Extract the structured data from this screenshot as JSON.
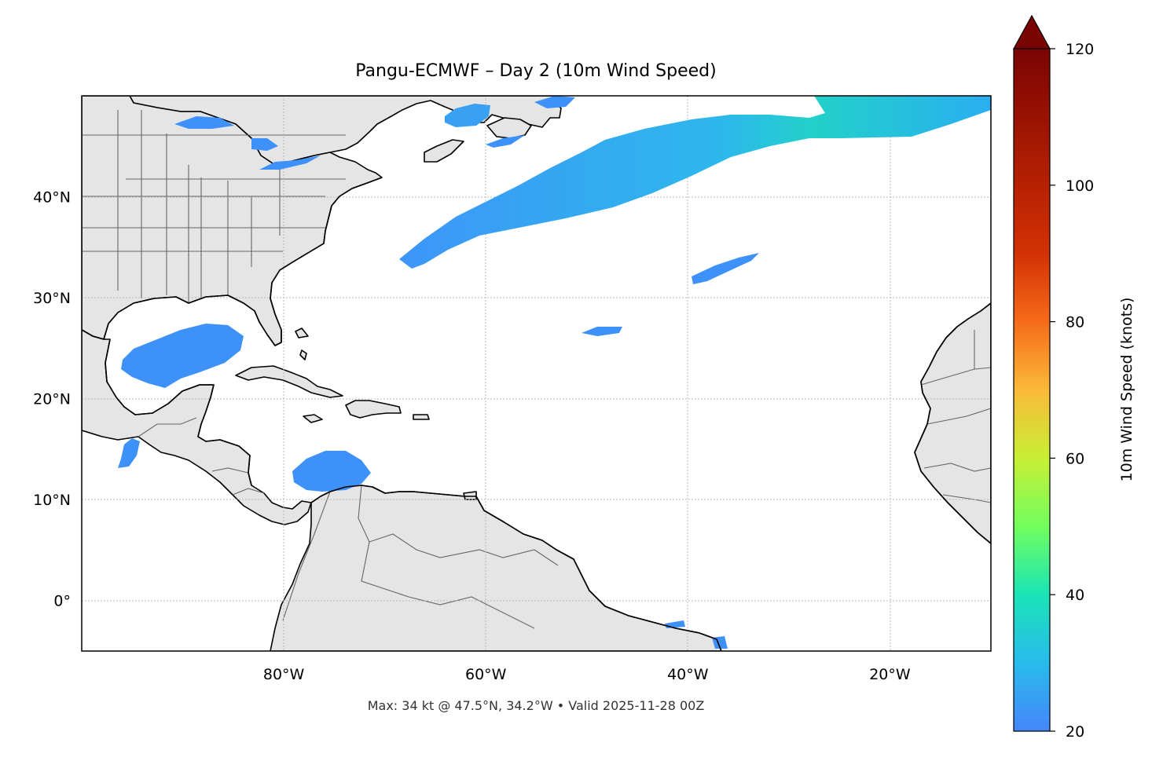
{
  "title": "Pangu-ECMWF – Day 2 (10m Wind Speed)",
  "footer": "Max: 34 kt @ 47.5°N, 34.2°W • Valid 2025-11-28 00Z",
  "map": {
    "lon_range": [
      -100,
      -10
    ],
    "lat_range": [
      -5,
      50
    ],
    "lat_ticks": [
      {
        "value": 40,
        "label": "40°N"
      },
      {
        "value": 30,
        "label": "30°N"
      },
      {
        "value": 20,
        "label": "20°N"
      },
      {
        "value": 10,
        "label": "10°N"
      },
      {
        "value": 0,
        "label": "0°"
      }
    ],
    "lon_ticks": [
      {
        "value": -80,
        "label": "80°W"
      },
      {
        "value": -60,
        "label": "60°W"
      },
      {
        "value": -40,
        "label": "40°W"
      },
      {
        "value": -20,
        "label": "20°W"
      }
    ],
    "gridlines": true,
    "land_color": "#e5e5e5",
    "coast_color": "#000000",
    "border_color": "#666666"
  },
  "colorbar": {
    "label": "10m Wind Speed (knots)",
    "range": [
      20,
      120
    ],
    "extend": "max",
    "ticks": [
      {
        "value": 20,
        "label": "20"
      },
      {
        "value": 40,
        "label": "40"
      },
      {
        "value": 60,
        "label": "60"
      },
      {
        "value": 80,
        "label": "80"
      },
      {
        "value": 100,
        "label": "100"
      },
      {
        "value": 120,
        "label": "120"
      }
    ],
    "colormap": "turbo",
    "extend_color": "#7a0403"
  },
  "wind_features": [
    {
      "name": "north-atlantic-jet-band",
      "speed_kt": 30
    },
    {
      "name": "gulf-of-mexico-area",
      "speed_kt": 22
    },
    {
      "name": "caribbean-area",
      "speed_kt": 22
    },
    {
      "name": "st-lawrence-area",
      "speed_kt": 22
    },
    {
      "name": "mid-atlantic-streak",
      "speed_kt": 21
    },
    {
      "name": "subtropical-streak",
      "speed_kt": 21
    },
    {
      "name": "pacific-coast-area",
      "speed_kt": 22
    }
  ],
  "max_point": {
    "speed_kt": 34,
    "lat": 47.5,
    "lon": -34.2
  }
}
